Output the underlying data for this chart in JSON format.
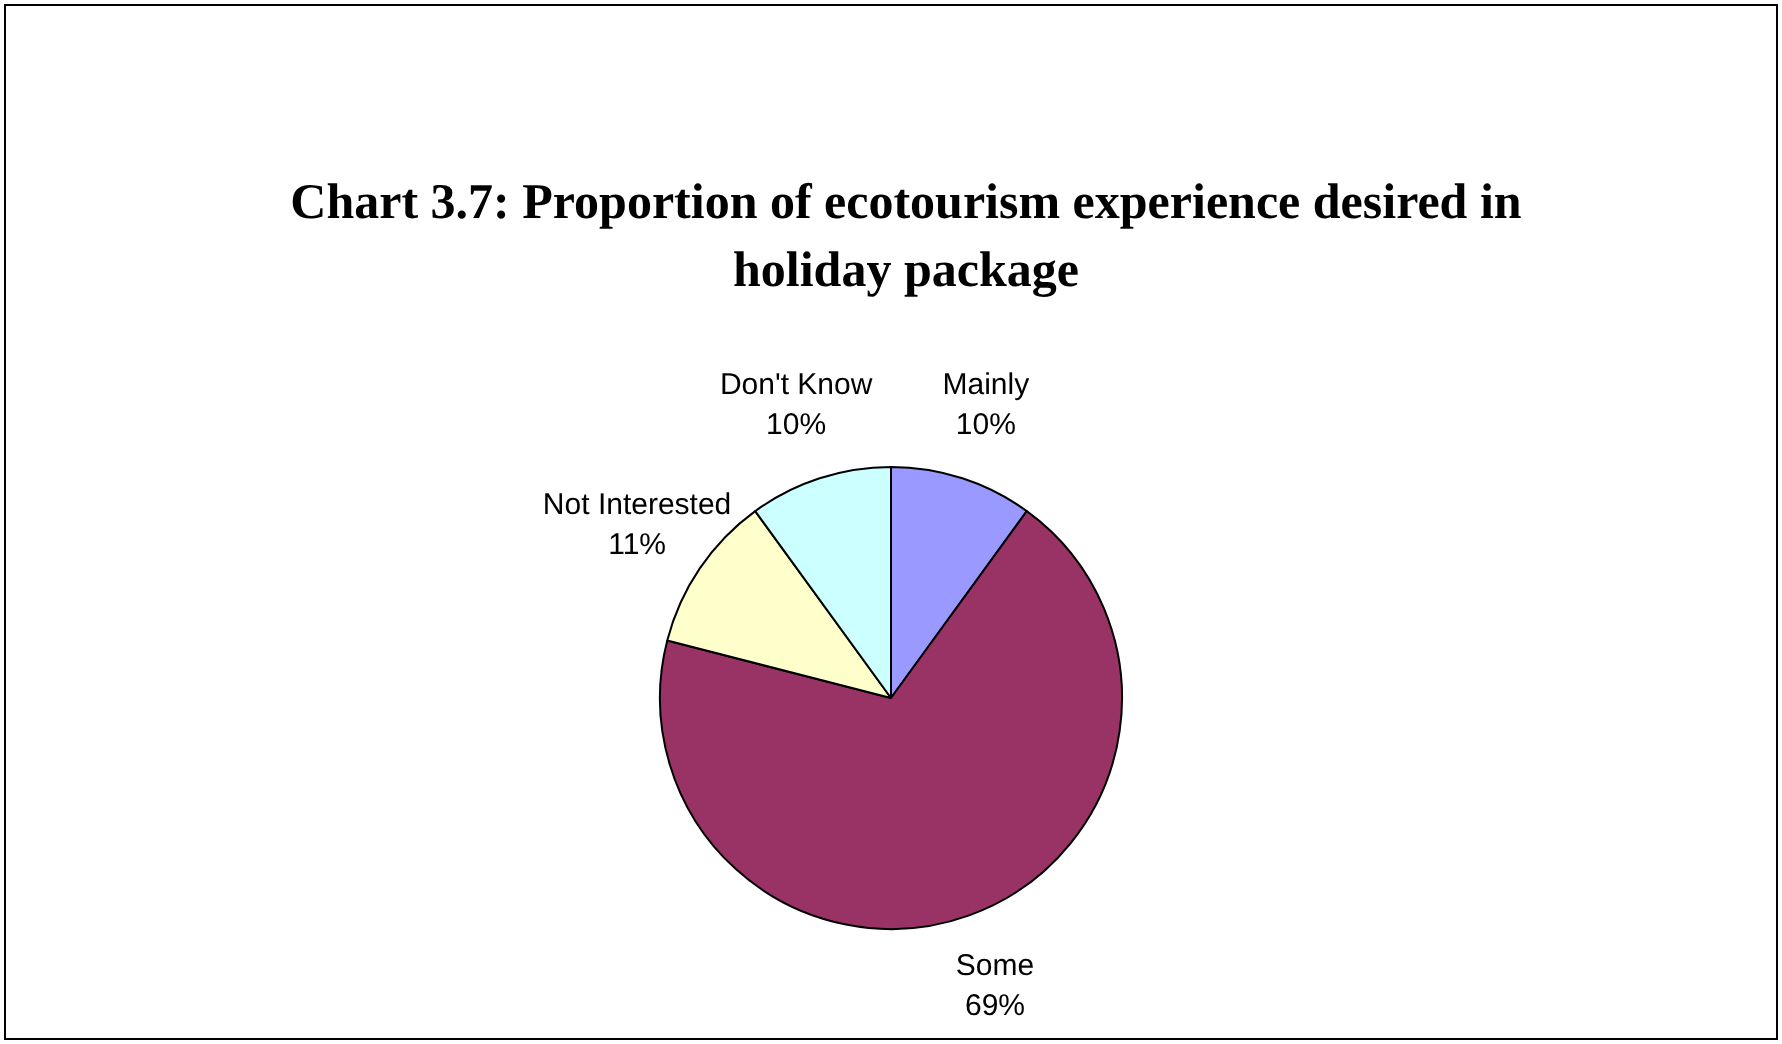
{
  "chart_data": {
    "type": "pie",
    "title": "Chart 3.7: Proportion of ecotourism experience desired in holiday package",
    "categories": [
      "Mainly",
      "Some",
      "Not Interested",
      "Don't Know"
    ],
    "values": [
      10,
      69,
      11,
      10
    ],
    "value_labels": [
      "10%",
      "69%",
      "11%",
      "10%"
    ],
    "colors": [
      "#9999ff",
      "#993366",
      "#ffffcc",
      "#ccffff"
    ],
    "legend": false
  }
}
